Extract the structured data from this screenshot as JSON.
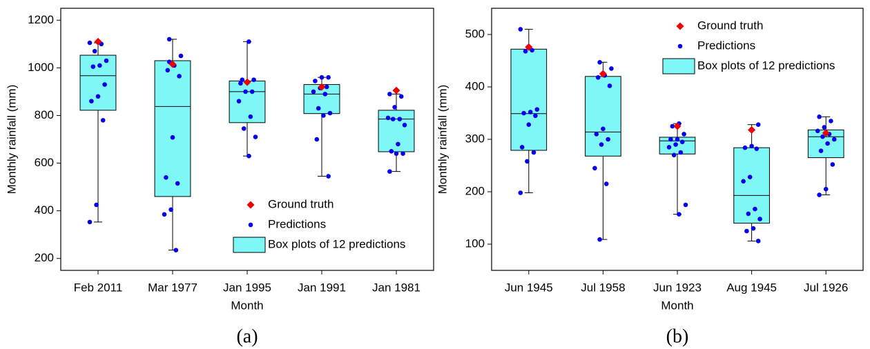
{
  "chart_data": [
    {
      "type": "box",
      "caption": "(a)",
      "x_label": "Month",
      "y_label": "Monthly rainfall (mm)",
      "categories": [
        "Feb 2011",
        "Mar 1977",
        "Jan 1995",
        "Jan 1991",
        "Jan 1981"
      ],
      "whisker_low": [
        353,
        235,
        630,
        545,
        565
      ],
      "q1": [
        822,
        460,
        770,
        808,
        648
      ],
      "median": [
        967,
        838,
        900,
        890,
        785
      ],
      "q3": [
        1053,
        1030,
        945,
        930,
        822
      ],
      "whisker_high": [
        1105,
        1120,
        1110,
        960,
        890
      ],
      "box_name": "Box plots of 12 predictions",
      "box_color": "#80f7f7",
      "points": {
        "name": "Predictions",
        "color": "#0000ee",
        "values": [
          [
            1105,
            1100,
            1070,
            1030,
            1010,
            1005,
            930,
            880,
            860,
            780,
            425,
            353
          ],
          [
            1120,
            1050,
            1010,
            990,
            965,
            708,
            540,
            515,
            405,
            385,
            235,
            1025
          ],
          [
            1110,
            950,
            950,
            940,
            935,
            900,
            900,
            860,
            795,
            745,
            710,
            630
          ],
          [
            960,
            960,
            945,
            920,
            915,
            900,
            890,
            830,
            810,
            800,
            700,
            545
          ],
          [
            890,
            880,
            835,
            790,
            785,
            785,
            760,
            680,
            650,
            640,
            640,
            565
          ]
        ]
      },
      "truth": {
        "name": "Ground truth",
        "color": "#ee0000",
        "values": [
          1110,
          1015,
          940,
          920,
          905
        ]
      },
      "ylim": [
        150,
        1250
      ],
      "yticks": [
        200,
        400,
        600,
        800,
        1000,
        1200
      ],
      "legend": "lower right"
    },
    {
      "type": "box",
      "caption": "(b)",
      "x_label": "Month",
      "y_label": "Monthly rainfall (mm)",
      "categories": [
        "Jun 1945",
        "Jul 1958",
        "Jun 1923",
        "Aug 1945",
        "Jul 1926"
      ],
      "whisker_low": [
        198,
        109,
        157,
        106,
        194
      ],
      "q1": [
        279,
        268,
        272,
        140,
        265
      ],
      "median": [
        349,
        314,
        297,
        193,
        305
      ],
      "q3": [
        472,
        420,
        304,
        284,
        318
      ],
      "whisker_high": [
        510,
        447,
        330,
        328,
        343
      ],
      "box_name": "Box plots of 12 predictions",
      "box_color": "#80f7f7",
      "points": {
        "name": "Predictions",
        "color": "#0000ee",
        "values": [
          [
            510,
            470,
            468,
            357,
            352,
            350,
            345,
            328,
            285,
            275,
            258,
            198
          ],
          [
            447,
            435,
            422,
            418,
            402,
            320,
            310,
            300,
            290,
            245,
            215,
            109
          ],
          [
            330,
            325,
            310,
            300,
            300,
            295,
            290,
            285,
            275,
            270,
            175,
            157
          ],
          [
            328,
            287,
            284,
            282,
            228,
            220,
            167,
            158,
            148,
            130,
            125,
            106
          ],
          [
            343,
            335,
            323,
            316,
            310,
            305,
            300,
            292,
            278,
            252,
            205,
            194
          ]
        ]
      },
      "truth": {
        "name": "Ground truth",
        "color": "#ee0000",
        "values": [
          476,
          425,
          325,
          318,
          312
        ]
      },
      "ylim": [
        50,
        550
      ],
      "yticks": [
        100,
        200,
        300,
        400,
        500
      ],
      "legend": "upper right"
    }
  ]
}
